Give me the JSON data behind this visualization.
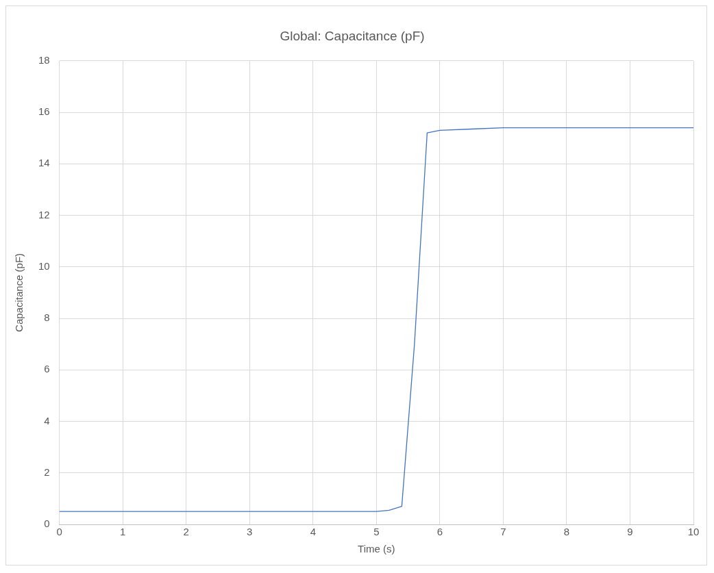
{
  "chart_data": {
    "type": "line",
    "title": "Global: Capacitance (pF)",
    "xlabel": "Time (s)",
    "ylabel": "Capacitance (pF)",
    "series": [
      {
        "color": "#4472c4",
        "x": [
          0,
          1,
          2,
          3,
          4,
          5,
          5.2,
          5.4,
          5.6,
          5.8,
          6,
          6.5,
          7,
          8,
          9,
          10
        ],
        "values": [
          0.5,
          0.5,
          0.5,
          0.5,
          0.5,
          0.5,
          0.55,
          0.7,
          7,
          15.2,
          15.3,
          15.35,
          15.4,
          15.4,
          15.4,
          15.4
        ]
      }
    ],
    "xlim": [
      0,
      10
    ],
    "xticks": [
      0,
      1,
      2,
      3,
      4,
      5,
      6,
      7,
      8,
      9,
      10
    ],
    "ylim": [
      0,
      18
    ],
    "yticks": [
      0,
      2,
      4,
      6,
      8,
      10,
      12,
      14,
      16,
      18
    ],
    "grid": true,
    "legend": false,
    "marker": "none",
    "line_style": "solid"
  }
}
